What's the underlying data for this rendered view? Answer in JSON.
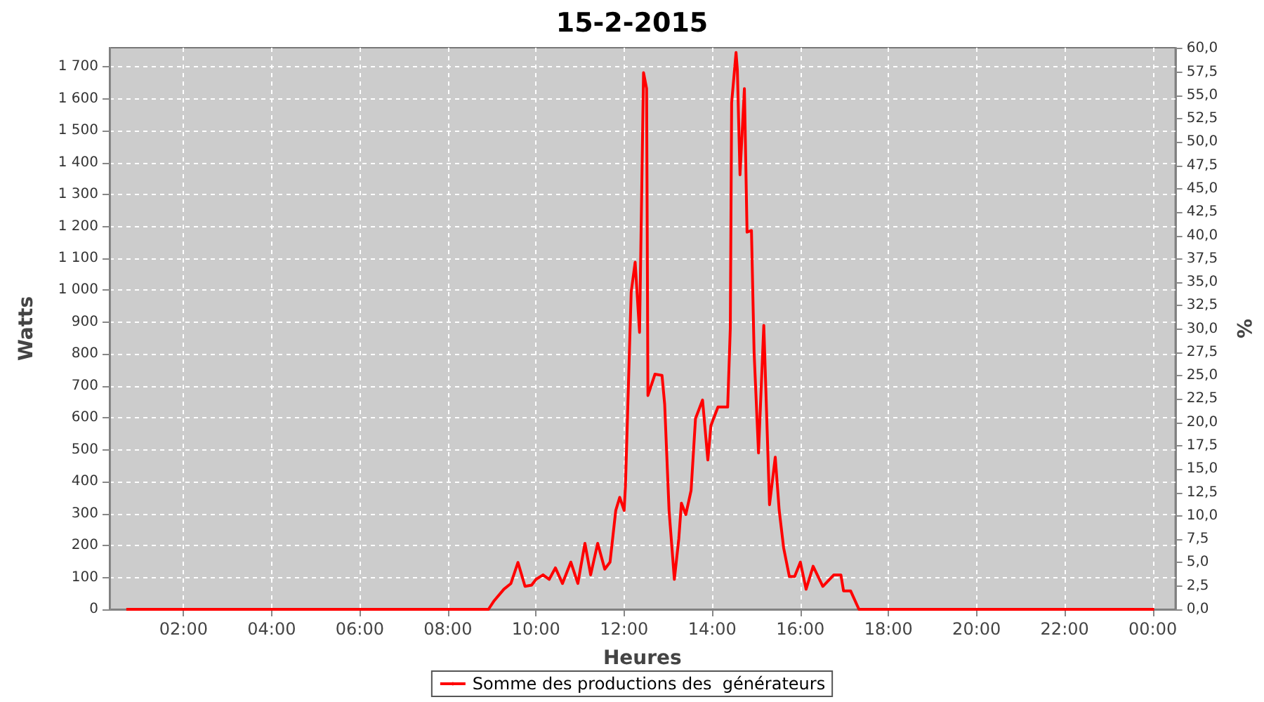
{
  "chart_data": {
    "type": "line",
    "title": "15-2-2015",
    "xlabel": "Heures",
    "ylabel": "Watts",
    "y2label": "%",
    "xlim": [
      0.32,
      24.51
    ],
    "ylim": [
      0,
      1760
    ],
    "y2lim": [
      0,
      60.1
    ],
    "xticks": [
      {
        "value": 2,
        "label": "02:00"
      },
      {
        "value": 4,
        "label": "04:00"
      },
      {
        "value": 6,
        "label": "06:00"
      },
      {
        "value": 8,
        "label": "08:00"
      },
      {
        "value": 10,
        "label": "10:00"
      },
      {
        "value": 12,
        "label": "12:00"
      },
      {
        "value": 14,
        "label": "14:00"
      },
      {
        "value": 16,
        "label": "16:00"
      },
      {
        "value": 18,
        "label": "18:00"
      },
      {
        "value": 20,
        "label": "20:00"
      },
      {
        "value": 22,
        "label": "22:00"
      },
      {
        "value": 24,
        "label": "00:00"
      }
    ],
    "yticks": [
      0,
      100,
      200,
      300,
      400,
      500,
      600,
      700,
      800,
      900,
      {
        "value": 1000,
        "label": "1 000"
      },
      {
        "value": 1100,
        "label": "1 100"
      },
      {
        "value": 1200,
        "label": "1 200"
      },
      {
        "value": 1300,
        "label": "1 300"
      },
      {
        "value": 1400,
        "label": "1 400"
      },
      {
        "value": 1500,
        "label": "1 500"
      },
      {
        "value": 1600,
        "label": "1 600"
      },
      {
        "value": 1700,
        "label": "1 700"
      }
    ],
    "y2ticks": [
      {
        "value": 0,
        "label": "0,0"
      },
      {
        "value": 2.5,
        "label": "2,5"
      },
      {
        "value": 5,
        "label": "5,0"
      },
      {
        "value": 7.5,
        "label": "7,5"
      },
      {
        "value": 10,
        "label": "10,0"
      },
      {
        "value": 12.5,
        "label": "12,5"
      },
      {
        "value": 15,
        "label": "15,0"
      },
      {
        "value": 17.5,
        "label": "17,5"
      },
      {
        "value": 20,
        "label": "20,0"
      },
      {
        "value": 22.5,
        "label": "22,5"
      },
      {
        "value": 25,
        "label": "25,0"
      },
      {
        "value": 27.5,
        "label": "27,5"
      },
      {
        "value": 30,
        "label": "30,0"
      },
      {
        "value": 32.5,
        "label": "32,5"
      },
      {
        "value": 35,
        "label": "35,0"
      },
      {
        "value": 37.5,
        "label": "37,5"
      },
      {
        "value": 40,
        "label": "40,0"
      },
      {
        "value": 42.5,
        "label": "42,5"
      },
      {
        "value": 45,
        "label": "45,0"
      },
      {
        "value": 47.5,
        "label": "47,5"
      },
      {
        "value": 50,
        "label": "50,0"
      },
      {
        "value": 52.5,
        "label": "52,5"
      },
      {
        "value": 55,
        "label": "55,0"
      },
      {
        "value": 57.5,
        "label": "57,5"
      },
      {
        "value": 60,
        "label": "60,0"
      }
    ],
    "grid": true,
    "legend": "bottom",
    "marker": "none",
    "line_style": "solid",
    "series": [
      {
        "name": "Somme des productions des  générateurs",
        "color": "#ff0000",
        "x": [
          0.7,
          8.92,
          9.05,
          9.27,
          9.43,
          9.59,
          9.75,
          9.9,
          10.0,
          10.16,
          10.3,
          10.44,
          10.6,
          10.79,
          10.95,
          11.11,
          11.24,
          11.4,
          11.56,
          11.68,
          11.81,
          11.9,
          12.0,
          12.03,
          12.16,
          12.25,
          12.35,
          12.44,
          12.51,
          12.54,
          12.7,
          12.86,
          12.92,
          13.02,
          13.14,
          13.24,
          13.3,
          13.4,
          13.52,
          13.62,
          13.78,
          13.9,
          13.97,
          14.13,
          14.35,
          14.41,
          14.44,
          14.54,
          14.57,
          14.63,
          14.73,
          14.79,
          14.89,
          14.95,
          15.05,
          15.17,
          15.3,
          15.43,
          15.52,
          15.62,
          15.75,
          15.87,
          16.0,
          16.13,
          16.29,
          16.51,
          16.76,
          16.92,
          16.98,
          17.14,
          17.33,
          24.03
        ],
        "values": [
          0,
          0,
          27,
          63,
          81,
          147,
          72,
          76,
          94,
          108,
          94,
          130,
          81,
          148,
          81,
          207,
          108,
          207,
          126,
          148,
          310,
          351,
          310,
          387,
          994,
          1088,
          868,
          1682,
          1632,
          670,
          737,
          733,
          643,
          310,
          94,
          220,
          333,
          297,
          373,
          598,
          656,
          468,
          576,
          634,
          634,
          881,
          1587,
          1745,
          1691,
          1362,
          1632,
          1182,
          1187,
          805,
          490,
          890,
          328,
          477,
          310,
          193,
          103,
          103,
          148,
          63,
          135,
          72,
          108,
          108,
          58,
          58,
          0,
          0
        ]
      }
    ]
  }
}
